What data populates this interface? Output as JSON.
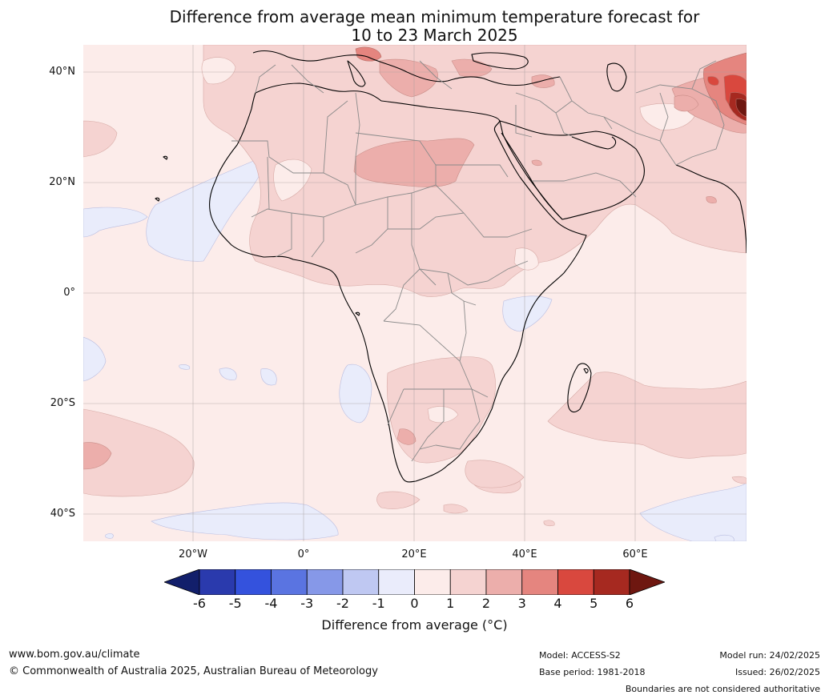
{
  "title": {
    "line1": "Difference from average mean minimum temperature forecast for",
    "line2": "10 to 23 March 2025"
  },
  "map": {
    "region": "Africa",
    "projection": "equirectangular",
    "lat_labels": [
      "40°N",
      "20°N",
      "0°",
      "20°S",
      "40°S"
    ],
    "lon_labels": [
      "20°W",
      "0°",
      "20°E",
      "40°E",
      "60°E"
    ]
  },
  "colorbar": {
    "ticks": [
      "-6",
      "-5",
      "-4",
      "-3",
      "-2",
      "-1",
      "0",
      "1",
      "2",
      "3",
      "4",
      "5",
      "6"
    ],
    "colors": [
      "#121f6b",
      "#2a3aad",
      "#3452dd",
      "#5a74e1",
      "#8698e8",
      "#bfc8f2",
      "#eaecfb",
      "#fcecea",
      "#f5d3d1",
      "#ecaeab",
      "#e5857f",
      "#d9483e",
      "#a62920",
      "#6e1710"
    ],
    "label": "Difference from average (°C)"
  },
  "footer": {
    "website": "www.bom.gov.au/climate",
    "copyright": "© Commonwealth of Australia 2025, Australian Bureau of Meteorology",
    "model": "Model: ACCESS-S2",
    "base_period": "Base period: 1981-2018",
    "model_run": "Model run: 24/02/2025",
    "issued": "Issued: 26/02/2025",
    "disclaimer": "Boundaries are not considered authoritative"
  }
}
